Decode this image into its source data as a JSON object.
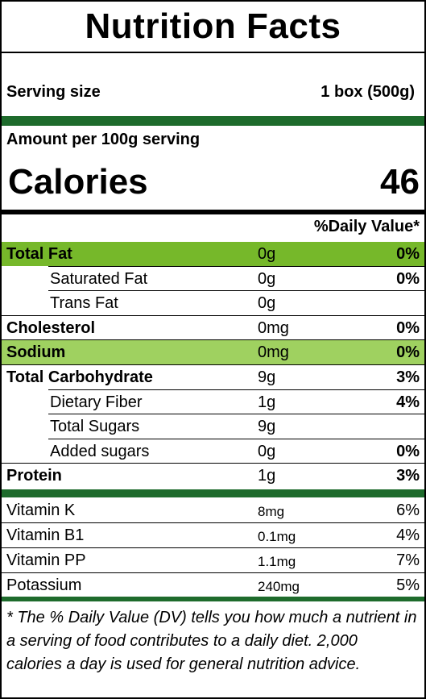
{
  "title": "Nutrition Facts",
  "serving": {
    "label": "Serving size",
    "value": "1 box (500g)"
  },
  "amount_per": "Amount per 100g serving",
  "calories": {
    "label": "Calories",
    "value": "46"
  },
  "daily_value_header": "%Daily Value*",
  "nutrients": [
    {
      "name": "Total Fat",
      "amount": "0g",
      "dv": "0%",
      "bold": true,
      "indent": false,
      "highlight": "#76b82a"
    },
    {
      "name": "Saturated Fat",
      "amount": "0g",
      "dv": "0%",
      "bold": false,
      "indent": true,
      "highlight": ""
    },
    {
      "name": "Trans Fat",
      "amount": "0g",
      "dv": "",
      "bold": false,
      "indent": true,
      "highlight": ""
    },
    {
      "name": "Cholesterol",
      "amount": "0mg",
      "dv": "0%",
      "bold": true,
      "indent": false,
      "highlight": ""
    },
    {
      "name": "Sodium",
      "amount": "0mg",
      "dv": "0%",
      "bold": true,
      "indent": false,
      "highlight": "#9fd160"
    },
    {
      "name": "Total Carbohydrate",
      "amount": "9g",
      "dv": "3%",
      "bold": true,
      "indent": false,
      "highlight": ""
    },
    {
      "name": "Dietary Fiber",
      "amount": "1g",
      "dv": "4%",
      "bold": false,
      "indent": true,
      "highlight": ""
    },
    {
      "name": "Total Sugars",
      "amount": "9g",
      "dv": "",
      "bold": false,
      "indent": true,
      "highlight": ""
    },
    {
      "name": "Added sugars",
      "amount": "0g",
      "dv": "0%",
      "bold": false,
      "indent": true,
      "highlight": ""
    },
    {
      "name": "Protein",
      "amount": "1g",
      "dv": "3%",
      "bold": true,
      "indent": false,
      "highlight": ""
    }
  ],
  "vitamins": [
    {
      "name": "Vitamin K",
      "amount": "8mg",
      "dv": "6%"
    },
    {
      "name": "Vitamin B1",
      "amount": "0.1mg",
      "dv": "4%"
    },
    {
      "name": "Vitamin PP",
      "amount": "1.1mg",
      "dv": "7%"
    },
    {
      "name": "Potassium",
      "amount": "240mg",
      "dv": "5%"
    }
  ],
  "footnote": "* The % Daily Value (DV) tells you how much a nutrient in a serving of food contributes to a daily diet. 2,000 calories a day is used for general nutrition advice.",
  "colors": {
    "rule_green": "#1e6b2c",
    "highlight_dark": "#76b82a",
    "highlight_light": "#9fd160"
  }
}
